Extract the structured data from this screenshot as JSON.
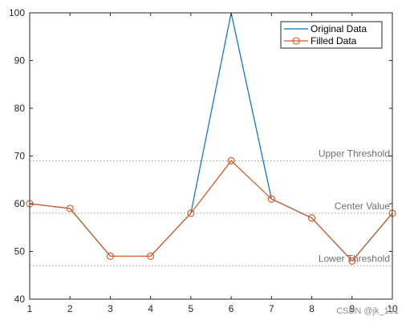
{
  "chart_data": {
    "type": "line",
    "title": "",
    "xlabel": "",
    "ylabel": "",
    "x": [
      1,
      2,
      3,
      4,
      5,
      6,
      7,
      8,
      9,
      10
    ],
    "xlim": [
      1,
      10
    ],
    "ylim": [
      40,
      100
    ],
    "xticks": [
      1,
      2,
      3,
      4,
      5,
      6,
      7,
      8,
      9,
      10
    ],
    "yticks": [
      40,
      50,
      60,
      70,
      80,
      90,
      100
    ],
    "grid": false,
    "legend_position": "top-right",
    "series": [
      {
        "name": "Original Data",
        "color": "#0072BD",
        "marker": "none",
        "values": [
          60,
          59,
          49,
          49,
          58,
          100,
          61,
          57,
          48,
          58
        ]
      },
      {
        "name": "Filled Data",
        "color": "#D95319",
        "marker": "circle",
        "values": [
          60,
          59,
          49,
          49,
          58,
          69,
          61,
          57,
          48,
          58
        ]
      }
    ],
    "reference_lines": [
      {
        "label": "Upper Threshold",
        "y": 69
      },
      {
        "label": "Center Value",
        "y": 58
      },
      {
        "label": "Lower Threshold",
        "y": 47
      }
    ]
  },
  "watermark": "CSDN @jk_101"
}
